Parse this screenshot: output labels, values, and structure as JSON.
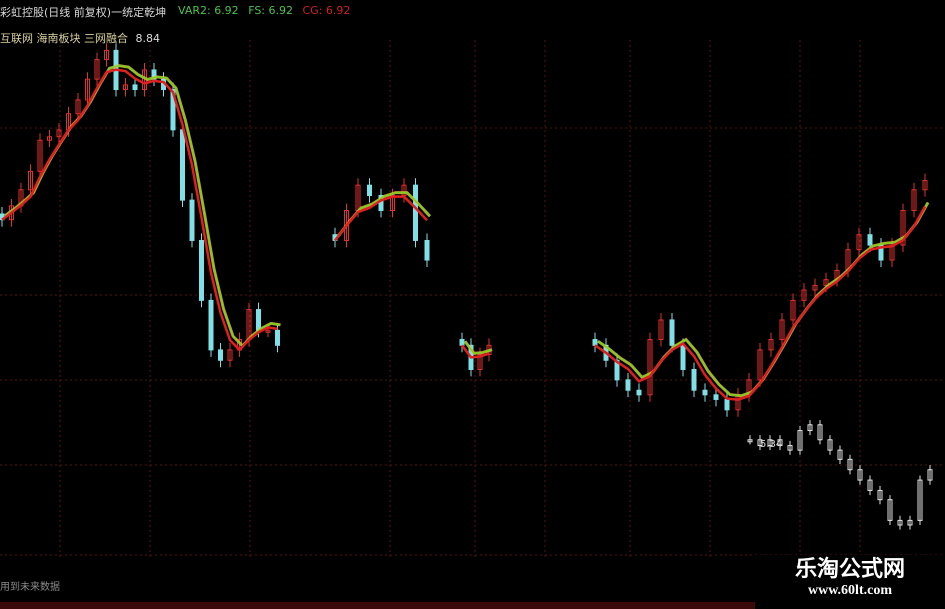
{
  "header": {
    "title": "彩虹控股(日线 前复权)一统定乾坤",
    "legend": [
      {
        "label": "VAR2: 6.92",
        "color": "#4cc24c"
      },
      {
        "label": "FS: 6.92",
        "color": "#4cc24c"
      },
      {
        "label": "CG: 6.92",
        "color": "#d02020"
      }
    ],
    "subtitle": "互联网 海南板块 三网融合",
    "high_label": "8.84"
  },
  "footer_note": "用到未来数据",
  "watermark": {
    "title": "乐淘公式网",
    "url": "www.60lt.com"
  },
  "colors": {
    "up": "#e03030",
    "down": "#7fe0e8",
    "ma_red": "#e02020",
    "ma_green": "#7cd020",
    "ma_yellow": "#e0c040",
    "future": "#e0e0e0",
    "grid": "#5a1010"
  },
  "chart_data": {
    "type": "candlestick",
    "price_range": [
      4.5,
      8.9
    ],
    "annotations": [
      {
        "label": "8.84"
      },
      {
        "label": "5.34"
      }
    ],
    "segments": [
      {
        "closes": [
          7.28,
          7.4,
          7.54,
          7.7,
          7.97,
          8.0,
          8.06,
          8.2,
          8.32,
          8.5,
          8.67,
          8.75,
          8.41,
          8.45,
          8.41,
          8.58,
          8.5,
          8.41,
          8.06,
          7.45,
          7.1,
          6.58,
          6.15,
          6.06,
          6.15,
          6.24,
          6.5,
          6.32,
          6.32,
          6.19
        ]
      },
      {
        "closes": [
          7.1,
          7.36,
          7.58,
          7.49,
          7.36,
          7.49,
          7.58,
          7.1,
          6.93
        ]
      },
      {
        "closes": [
          6.19,
          5.98,
          6.11,
          6.19
        ]
      },
      {
        "closes": [
          6.19,
          6.06,
          5.89,
          5.8,
          5.76,
          6.24,
          6.41,
          6.19,
          5.98,
          5.8,
          5.76,
          5.72,
          5.63,
          5.76,
          5.89,
          6.15,
          6.24,
          6.41,
          6.58,
          6.67,
          6.71,
          6.76,
          6.84,
          7.02,
          7.15,
          7.06,
          6.93,
          7.06,
          7.36,
          7.54,
          7.62
        ]
      }
    ],
    "future_series": [
      5.37,
      5.32,
      5.37,
      5.32,
      5.28,
      5.45,
      5.5,
      5.37,
      5.28,
      5.2,
      5.11,
      5.02,
      4.93,
      4.85,
      4.67,
      4.63,
      4.67,
      5.02,
      5.11
    ]
  }
}
